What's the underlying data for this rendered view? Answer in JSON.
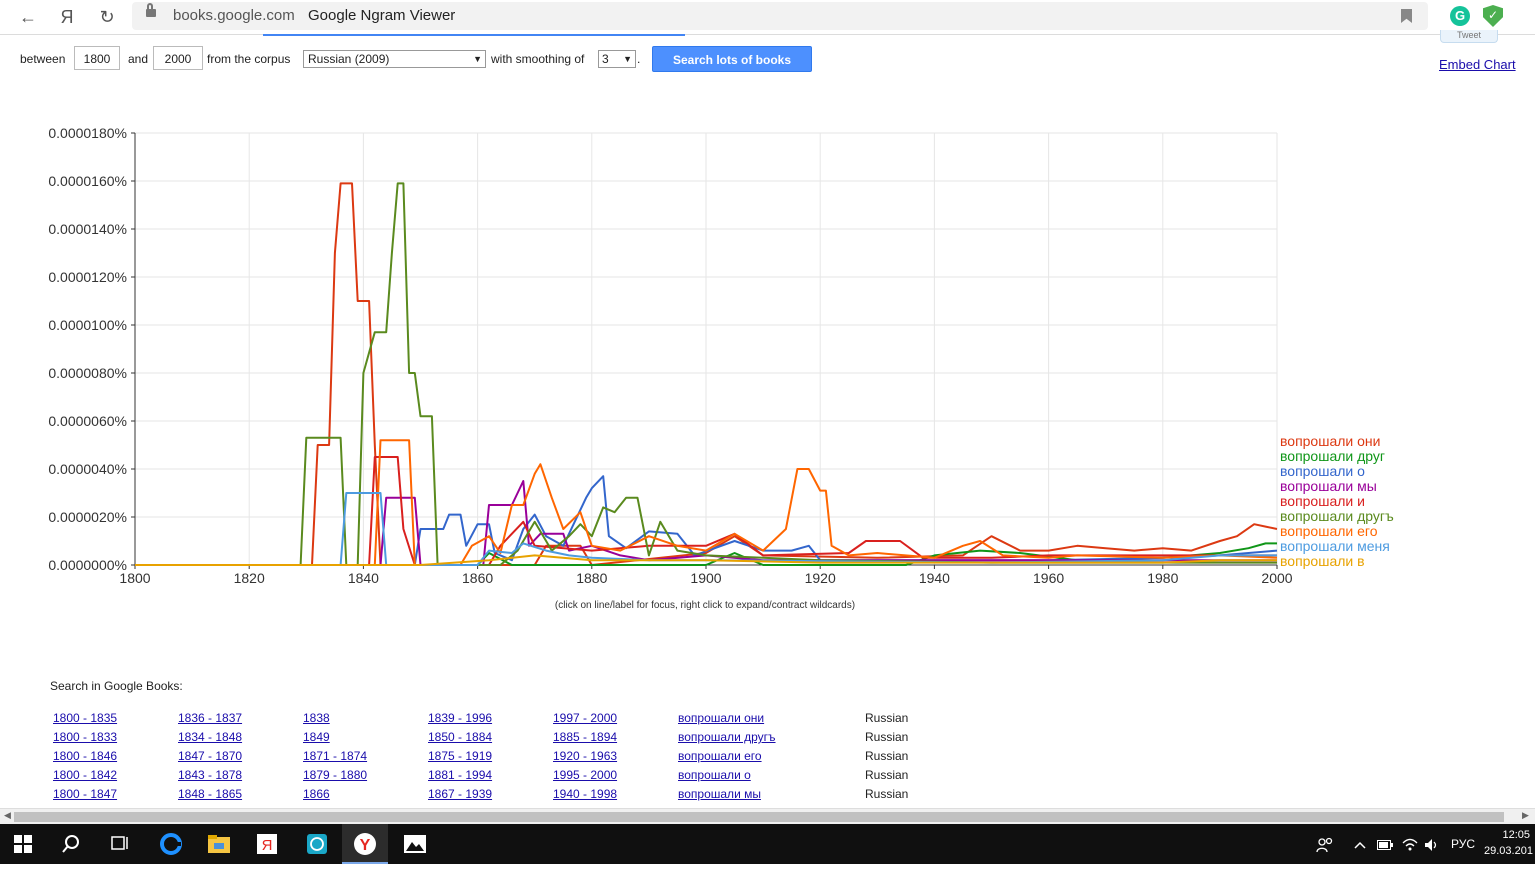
{
  "browser": {
    "back_label": "←",
    "yandex_label": "Я",
    "reload_label": "↻",
    "domain": "books.google.com",
    "title": "Google Ngram Viewer",
    "tweet_label": "Tweet"
  },
  "controls": {
    "between_label": "between",
    "start_year": "1800",
    "and_label": "and",
    "end_year": "2000",
    "corpus_label": "from the corpus",
    "corpus_value": "Russian (2009)",
    "smoothing_label": "with smoothing of",
    "smoothing_value": "3",
    "period": ".",
    "search_button": "Search lots of books",
    "embed_link": "Embed Chart"
  },
  "chart_data": {
    "type": "line",
    "xlim": [
      1800,
      2000
    ],
    "ylim": [
      0,
      1.8e-07
    ],
    "x_ticks": [
      "1800",
      "1820",
      "1840",
      "1860",
      "1880",
      "1900",
      "1920",
      "1940",
      "1960",
      "1980",
      "2000"
    ],
    "y_ticks": [
      "0.0000000%",
      "0.0000020%",
      "0.0000040%",
      "0.0000060%",
      "0.0000080%",
      "0.0000100%",
      "0.0000120%",
      "0.0000140%",
      "0.0000160%",
      "0.0000180%"
    ],
    "grid": true,
    "legend_position": "right-end",
    "series": [
      {
        "name": "вопрошали они",
        "color": "#dc3912",
        "points": [
          [
            1800,
            0
          ],
          [
            1831,
            0
          ],
          [
            1832,
            5e-08
          ],
          [
            1834,
            5e-08
          ],
          [
            1835,
            1.3e-07
          ],
          [
            1836,
            1.59e-07
          ],
          [
            1838,
            1.59e-07
          ],
          [
            1839,
            1.1e-07
          ],
          [
            1841,
            1.1e-07
          ],
          [
            1842,
            5e-08
          ],
          [
            1843,
            0
          ],
          [
            1870,
            0
          ],
          [
            1872,
            8e-09
          ],
          [
            1878,
            8e-09
          ],
          [
            1880,
            0
          ],
          [
            1900,
            5e-09
          ],
          [
            1905,
            1.2e-08
          ],
          [
            1910,
            4e-09
          ],
          [
            1930,
            3e-09
          ],
          [
            1945,
            4e-09
          ],
          [
            1950,
            1.2e-08
          ],
          [
            1955,
            6e-09
          ],
          [
            1960,
            6e-09
          ],
          [
            1965,
            8e-09
          ],
          [
            1970,
            7e-09
          ],
          [
            1975,
            6e-09
          ],
          [
            1980,
            7e-09
          ],
          [
            1985,
            6e-09
          ],
          [
            1990,
            1e-08
          ],
          [
            1993,
            1.2e-08
          ],
          [
            1996,
            1.7e-08
          ],
          [
            1998,
            1.6e-08
          ],
          [
            2000,
            1.5e-08
          ]
        ]
      },
      {
        "name": "вопрошали друг",
        "color": "#109618",
        "points": [
          [
            1800,
            0
          ],
          [
            1860,
            0
          ],
          [
            1862,
            5e-09
          ],
          [
            1866,
            0
          ],
          [
            1900,
            0
          ],
          [
            1905,
            5e-09
          ],
          [
            1910,
            0
          ],
          [
            1935,
            0
          ],
          [
            1940,
            4e-09
          ],
          [
            1948,
            6e-09
          ],
          [
            1955,
            5e-09
          ],
          [
            1965,
            2e-09
          ],
          [
            1980,
            3e-09
          ],
          [
            1990,
            5e-09
          ],
          [
            1995,
            7e-09
          ],
          [
            1998,
            9e-09
          ],
          [
            2000,
            9e-09
          ]
        ]
      },
      {
        "name": "вопрошали о",
        "color": "#3366cc",
        "points": [
          [
            1800,
            0
          ],
          [
            1849,
            0
          ],
          [
            1850,
            1.5e-08
          ],
          [
            1854,
            1.5e-08
          ],
          [
            1855,
            2.1e-08
          ],
          [
            1857,
            2.1e-08
          ],
          [
            1858,
            8e-09
          ],
          [
            1860,
            1.7e-08
          ],
          [
            1862,
            1.7e-08
          ],
          [
            1863,
            5e-09
          ],
          [
            1866,
            2e-09
          ],
          [
            1868,
            1.5e-08
          ],
          [
            1870,
            2.1e-08
          ],
          [
            1872,
            1.2e-08
          ],
          [
            1875,
            8e-09
          ],
          [
            1877,
            1.8e-08
          ],
          [
            1879,
            2.8e-08
          ],
          [
            1880,
            3.2e-08
          ],
          [
            1882,
            3.7e-08
          ],
          [
            1883,
            1.2e-08
          ],
          [
            1886,
            7e-09
          ],
          [
            1890,
            1.4e-08
          ],
          [
            1895,
            1.3e-08
          ],
          [
            1898,
            4e-09
          ],
          [
            1905,
            1e-08
          ],
          [
            1910,
            6e-09
          ],
          [
            1915,
            6e-09
          ],
          [
            1918,
            8e-09
          ],
          [
            1920,
            2e-09
          ],
          [
            1930,
            2e-09
          ],
          [
            1940,
            2e-09
          ],
          [
            1960,
            2e-09
          ],
          [
            1980,
            3e-09
          ],
          [
            1990,
            4e-09
          ],
          [
            1995,
            5e-09
          ],
          [
            2000,
            6e-09
          ]
        ]
      },
      {
        "name": "вопрошали мы",
        "color": "#990099",
        "points": [
          [
            1800,
            0
          ],
          [
            1843,
            0
          ],
          [
            1844,
            2.8e-08
          ],
          [
            1849,
            2.8e-08
          ],
          [
            1850,
            0
          ],
          [
            1861,
            0
          ],
          [
            1862,
            2.5e-08
          ],
          [
            1866,
            2.5e-08
          ],
          [
            1868,
            3.5e-08
          ],
          [
            1869,
            8e-09
          ],
          [
            1871,
            1.3e-08
          ],
          [
            1875,
            1.3e-08
          ],
          [
            1876,
            6e-09
          ],
          [
            1880,
            8e-09
          ],
          [
            1885,
            4e-09
          ],
          [
            1890,
            2e-09
          ],
          [
            1900,
            4e-09
          ],
          [
            1910,
            2e-09
          ],
          [
            1950,
            2e-09
          ],
          [
            1980,
            2e-09
          ],
          [
            2000,
            2e-09
          ]
        ]
      },
      {
        "name": "вопрошали и",
        "color": "#d9201e",
        "points": [
          [
            1800,
            0
          ],
          [
            1841,
            0
          ],
          [
            1842,
            4.5e-08
          ],
          [
            1846,
            4.5e-08
          ],
          [
            1847,
            1.5e-08
          ],
          [
            1849,
            0
          ],
          [
            1862,
            0
          ],
          [
            1864,
            8e-09
          ],
          [
            1868,
            1.8e-08
          ],
          [
            1870,
            8e-09
          ],
          [
            1880,
            6e-09
          ],
          [
            1890,
            8e-09
          ],
          [
            1900,
            8e-09
          ],
          [
            1905,
            1.3e-08
          ],
          [
            1910,
            4e-09
          ],
          [
            1925,
            5e-09
          ],
          [
            1928,
            1e-08
          ],
          [
            1934,
            1e-08
          ],
          [
            1938,
            3e-09
          ],
          [
            1950,
            3e-09
          ],
          [
            1960,
            4e-09
          ],
          [
            1980,
            4e-09
          ],
          [
            2000,
            4e-09
          ]
        ]
      },
      {
        "name": "вопрошали другъ",
        "color": "#5a8a1e",
        "points": [
          [
            1800,
            0
          ],
          [
            1829,
            0
          ],
          [
            1830,
            5.3e-08
          ],
          [
            1836,
            5.3e-08
          ],
          [
            1837,
            0
          ],
          [
            1839,
            0
          ],
          [
            1840,
            8e-08
          ],
          [
            1842,
            9.7e-08
          ],
          [
            1844,
            9.7e-08
          ],
          [
            1845,
            1.3e-07
          ],
          [
            1846,
            1.59e-07
          ],
          [
            1847,
            1.59e-07
          ],
          [
            1848,
            8e-08
          ],
          [
            1849,
            8e-08
          ],
          [
            1850,
            6.2e-08
          ],
          [
            1852,
            6.2e-08
          ],
          [
            1853,
            0
          ],
          [
            1864,
            0
          ],
          [
            1867,
            6e-09
          ],
          [
            1870,
            1.8e-08
          ],
          [
            1873,
            6e-09
          ],
          [
            1876,
            1.2e-08
          ],
          [
            1878,
            1.7e-08
          ],
          [
            1880,
            1.2e-08
          ],
          [
            1882,
            2.4e-08
          ],
          [
            1884,
            2.2e-08
          ],
          [
            1886,
            2.8e-08
          ],
          [
            1888,
            2.8e-08
          ],
          [
            1890,
            4e-09
          ],
          [
            1892,
            1.8e-08
          ],
          [
            1895,
            6e-09
          ],
          [
            1900,
            4e-09
          ],
          [
            1910,
            3e-09
          ],
          [
            1920,
            2e-09
          ],
          [
            1950,
            1e-09
          ],
          [
            2000,
            1e-09
          ]
        ]
      },
      {
        "name": "вопрошали его",
        "color": "#ff6600",
        "points": [
          [
            1800,
            0
          ],
          [
            1842,
            0
          ],
          [
            1843,
            5.2e-08
          ],
          [
            1848,
            5.2e-08
          ],
          [
            1849,
            0
          ],
          [
            1857,
            0
          ],
          [
            1859,
            8e-09
          ],
          [
            1862,
            1.2e-08
          ],
          [
            1864,
            5e-09
          ],
          [
            1866,
            2.5e-08
          ],
          [
            1868,
            2.5e-08
          ],
          [
            1870,
            3.8e-08
          ],
          [
            1871,
            4.2e-08
          ],
          [
            1873,
            2.8e-08
          ],
          [
            1875,
            1.5e-08
          ],
          [
            1878,
            2.2e-08
          ],
          [
            1880,
            8e-09
          ],
          [
            1885,
            6e-09
          ],
          [
            1890,
            1.2e-08
          ],
          [
            1895,
            8e-09
          ],
          [
            1900,
            6e-09
          ],
          [
            1905,
            1.3e-08
          ],
          [
            1910,
            6e-09
          ],
          [
            1914,
            1.5e-08
          ],
          [
            1916,
            4e-08
          ],
          [
            1918,
            4e-08
          ],
          [
            1920,
            3.1e-08
          ],
          [
            1921,
            3.1e-08
          ],
          [
            1922,
            8e-09
          ],
          [
            1925,
            4e-09
          ],
          [
            1930,
            5e-09
          ],
          [
            1940,
            3e-09
          ],
          [
            1945,
            8e-09
          ],
          [
            1948,
            1e-08
          ],
          [
            1952,
            4e-09
          ],
          [
            1960,
            3e-09
          ],
          [
            1965,
            4e-09
          ],
          [
            1980,
            3e-09
          ],
          [
            1990,
            4e-09
          ],
          [
            2000,
            3e-09
          ]
        ]
      },
      {
        "name": "вопрошали меня",
        "color": "#4d9be0",
        "points": [
          [
            1800,
            0
          ],
          [
            1836,
            0
          ],
          [
            1837,
            3e-08
          ],
          [
            1843,
            3e-08
          ],
          [
            1844,
            0
          ],
          [
            1860,
            0
          ],
          [
            1862,
            6e-09
          ],
          [
            1866,
            5e-09
          ],
          [
            1868,
            9e-09
          ],
          [
            1872,
            6e-09
          ],
          [
            1876,
            4e-09
          ],
          [
            1880,
            3e-09
          ],
          [
            1890,
            2e-09
          ],
          [
            1900,
            2e-09
          ],
          [
            1950,
            1e-09
          ],
          [
            1980,
            2e-09
          ],
          [
            1990,
            4e-09
          ],
          [
            2000,
            4e-09
          ]
        ]
      },
      {
        "name": "вопрошали в",
        "color": "#e8a200",
        "points": [
          [
            1800,
            0
          ],
          [
            1850,
            0
          ],
          [
            1862,
            2e-09
          ],
          [
            1870,
            4e-09
          ],
          [
            1880,
            2e-09
          ],
          [
            1900,
            2e-09
          ],
          [
            1920,
            1e-09
          ],
          [
            1950,
            1e-09
          ],
          [
            1980,
            1e-09
          ],
          [
            1990,
            2e-09
          ],
          [
            2000,
            2e-09
          ]
        ]
      }
    ]
  },
  "caption": "(click on line/label for focus, right click to expand/contract wildcards)",
  "search_books": {
    "title": "Search in Google Books:",
    "rows": [
      {
        "c": [
          "1800 - 1835",
          "1836 - 1837",
          "1838",
          "1839 - 1996",
          "1997 - 2000",
          "вопрошали они"
        ],
        "lang": "Russian"
      },
      {
        "c": [
          "1800 - 1833",
          "1834 - 1848",
          "1849",
          "1850 - 1884",
          "1885 - 1894",
          "вопрошали другъ"
        ],
        "lang": "Russian"
      },
      {
        "c": [
          "1800 - 1846",
          "1847 - 1870",
          "1871 - 1874",
          "1875 - 1919",
          "1920 - 1963",
          "вопрошали его"
        ],
        "lang": "Russian"
      },
      {
        "c": [
          "1800 - 1842",
          "1843 - 1878",
          "1879 - 1880",
          "1881 - 1994",
          "1995 - 2000",
          "вопрошали о"
        ],
        "lang": "Russian"
      },
      {
        "c": [
          "1800 - 1847",
          "1848 - 1865",
          "1866",
          "1867 - 1939",
          "1940 - 1998",
          "вопрошали мы"
        ],
        "lang": "Russian"
      }
    ]
  },
  "taskbar": {
    "language": "РУС",
    "time": "12:05",
    "date": "29.03.201"
  }
}
